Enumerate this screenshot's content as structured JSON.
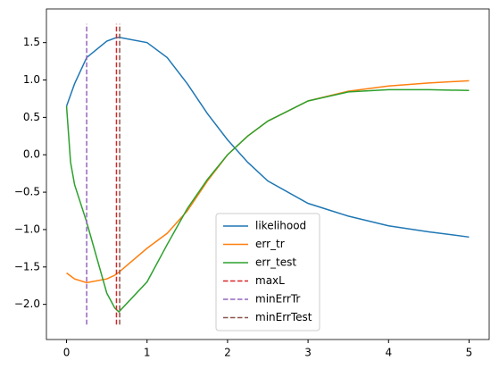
{
  "chart_data": {
    "type": "line",
    "x": [
      0,
      0.05,
      0.1,
      0.25,
      0.5,
      0.6,
      0.65,
      1,
      1.25,
      1.5,
      1.75,
      2,
      2.25,
      2.5,
      3,
      3.5,
      4,
      4.5,
      5
    ],
    "series": [
      {
        "name": "likelihood",
        "color": "#1f77b4",
        "values": [
          0.65,
          0.8,
          0.95,
          1.3,
          1.52,
          1.56,
          1.57,
          1.5,
          1.3,
          0.95,
          0.55,
          0.2,
          -0.1,
          -0.35,
          -0.65,
          -0.82,
          -0.95,
          -1.03,
          -1.1
        ]
      },
      {
        "name": "err_tr",
        "color": "#ff7f0e",
        "values": [
          -1.58,
          -1.62,
          -1.66,
          -1.71,
          -1.66,
          -1.61,
          -1.57,
          -1.25,
          -1.05,
          -0.75,
          -0.35,
          0.0,
          0.25,
          0.45,
          0.72,
          0.85,
          0.92,
          0.96,
          0.99
        ]
      },
      {
        "name": "err_test",
        "color": "#2ca02c",
        "values": [
          0.65,
          -0.1,
          -0.4,
          -0.9,
          -1.85,
          -2.05,
          -2.1,
          -1.7,
          -1.2,
          -0.72,
          -0.33,
          0.0,
          0.25,
          0.45,
          0.72,
          0.84,
          0.87,
          0.87,
          0.86
        ]
      },
      {
        "name": "maxL",
        "color": "#d62728",
        "style": "dashed",
        "xpos": 0.62,
        "ymin": -2.27,
        "ymax": 1.75
      },
      {
        "name": "minErrTr",
        "color": "#9467bd",
        "style": "dashed",
        "xpos": 0.25,
        "ymin": -2.27,
        "ymax": 1.75
      },
      {
        "name": "minErrTest",
        "color": "#8c564b",
        "style": "dashed",
        "xpos": 0.66,
        "ymin": -2.27,
        "ymax": 1.75
      }
    ],
    "xlim": [
      -0.25,
      5.25
    ],
    "ylim": [
      -2.47,
      1.95
    ],
    "xticks": [
      0,
      1,
      2,
      3,
      4,
      5
    ],
    "yticks": [
      {
        "value": -2.0,
        "label": "−2.0"
      },
      {
        "value": -1.5,
        "label": "−1.5"
      },
      {
        "value": -1.0,
        "label": "−1.0"
      },
      {
        "value": -0.5,
        "label": "−0.5"
      },
      {
        "value": 0.0,
        "label": "0.0"
      },
      0.5,
      {
        "value": 1.0,
        "label": "1.0"
      },
      1.5
    ],
    "grid": false,
    "legend": "lower center"
  }
}
